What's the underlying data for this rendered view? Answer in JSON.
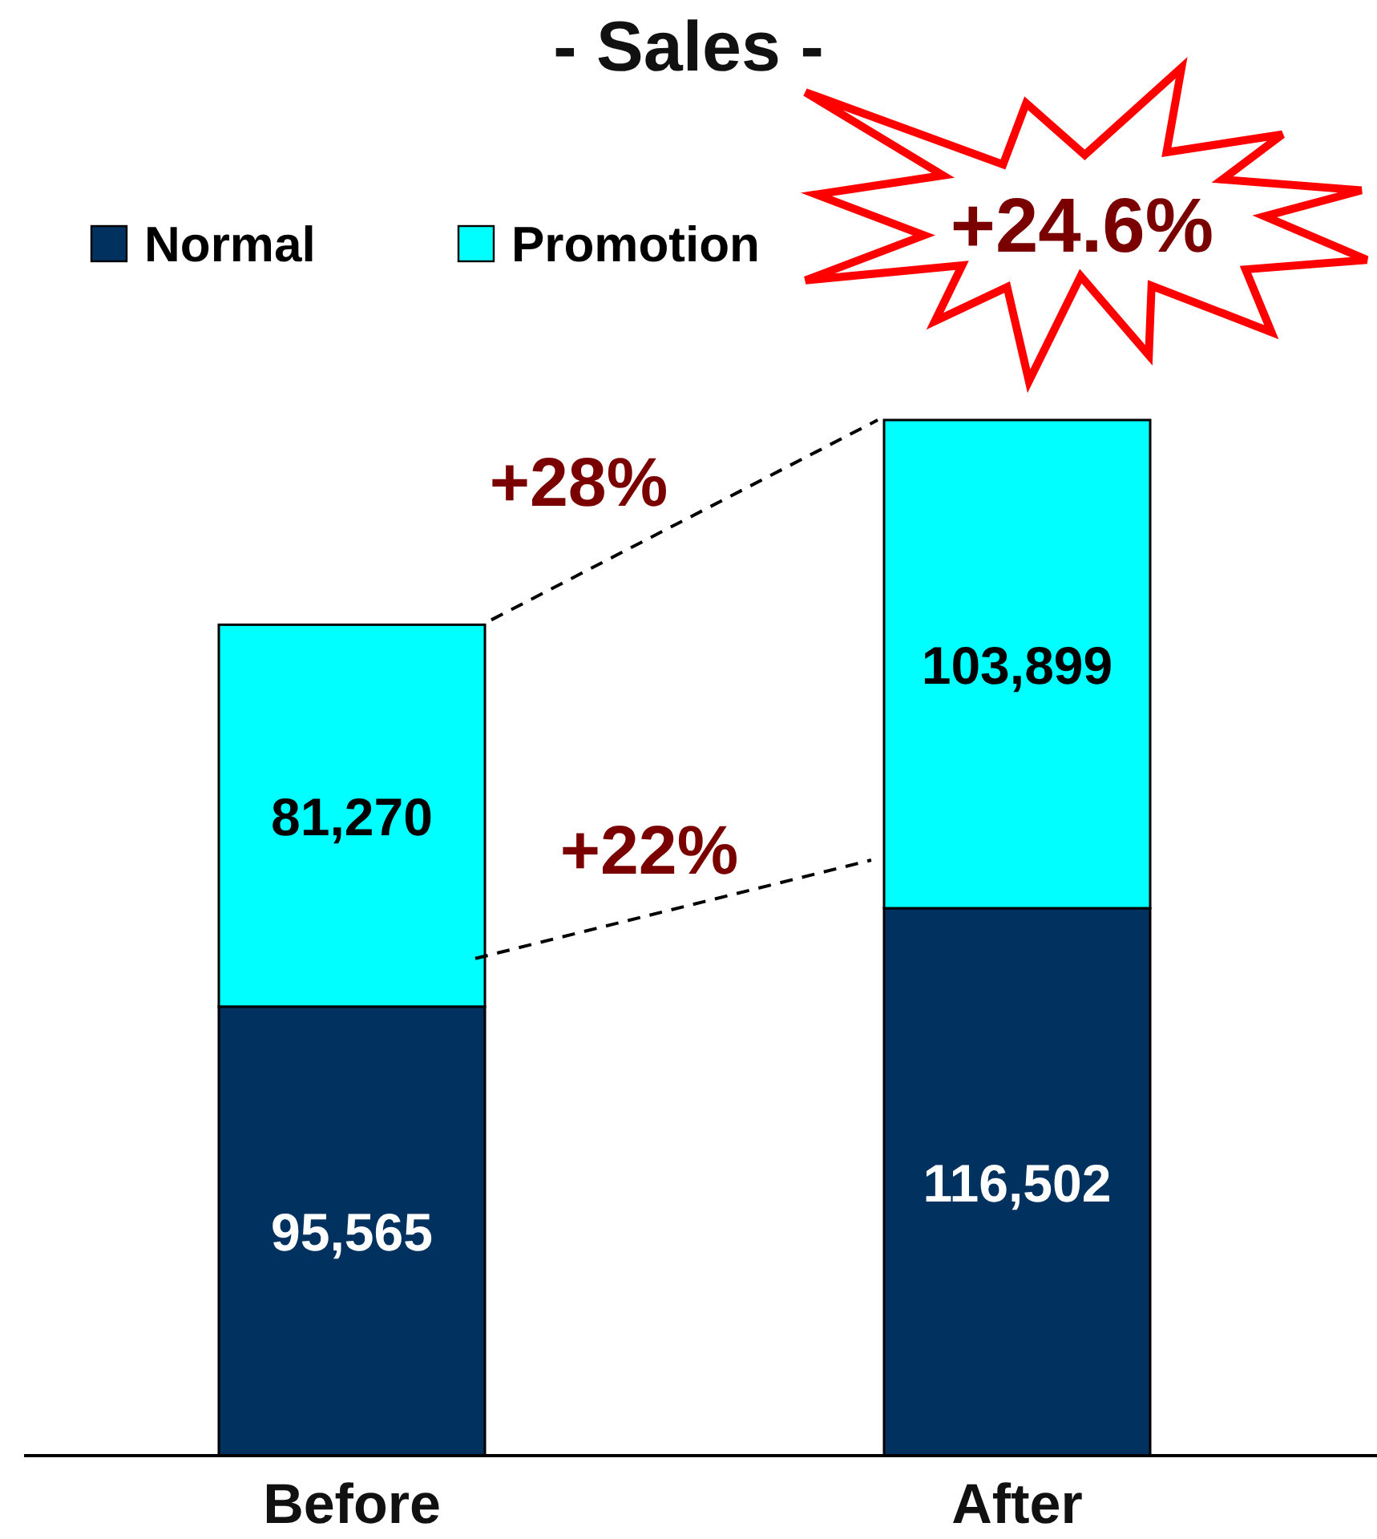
{
  "chart_data": {
    "type": "bar",
    "title": "- Sales -",
    "categories": [
      "Before",
      "After"
    ],
    "stacked": true,
    "series": [
      {
        "name": "Normal",
        "color": "#00315f",
        "values": [
          95565,
          116502
        ],
        "value_labels": [
          "95,565",
          "116,502"
        ]
      },
      {
        "name": "Promotion",
        "color": "#00ffff",
        "values": [
          81270,
          103899
        ],
        "value_labels": [
          "81,270",
          "103,899"
        ]
      }
    ],
    "legend": "top left",
    "annotations": [
      "+28%",
      "+22%",
      "+24.6%"
    ]
  }
}
